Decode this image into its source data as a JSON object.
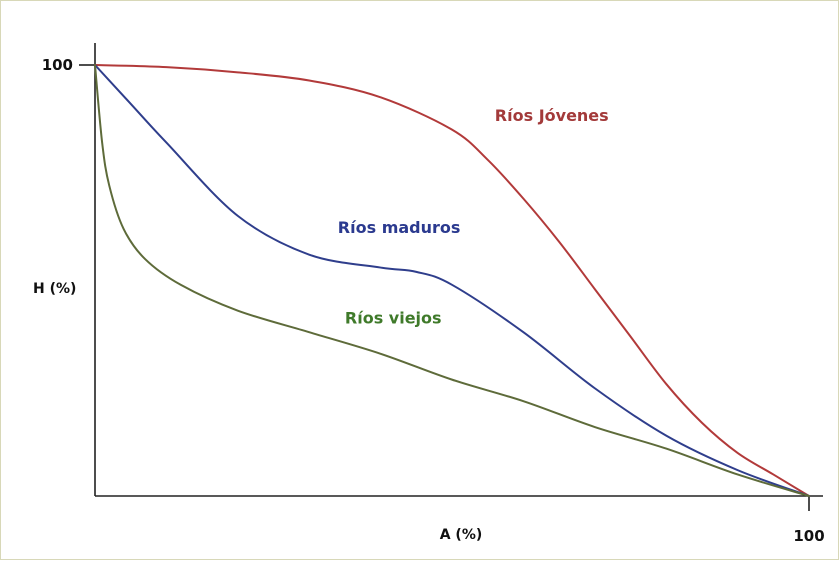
{
  "chart_data": {
    "type": "line",
    "title": "",
    "xlabel": "A (%)",
    "ylabel": "H (%)",
    "xlim": [
      0,
      100
    ],
    "ylim": [
      0,
      100
    ],
    "x_tick_labels": [
      "100"
    ],
    "y_tick_labels": [
      "100"
    ],
    "grid": false,
    "series": [
      {
        "name": "Ríos Jóvenes",
        "color": "#b23a3a",
        "x": [
          0,
          10,
          20,
          30,
          40,
          50,
          55,
          60,
          65,
          70,
          75,
          80,
          85,
          90,
          95,
          100
        ],
        "y": [
          100,
          99.5,
          98.3,
          96.4,
          92.5,
          85,
          78,
          69,
          59,
          48,
          37,
          26,
          17,
          10,
          5,
          0
        ]
      },
      {
        "name": "Ríos maduros",
        "color": "#2f3e8c",
        "x": [
          0,
          5,
          10,
          20,
          30,
          40,
          45,
          50,
          60,
          70,
          80,
          90,
          100
        ],
        "y": [
          100,
          91,
          82,
          65,
          56,
          53,
          52,
          49,
          38,
          25,
          14,
          6,
          0
        ]
      },
      {
        "name": "Ríos viejos",
        "color": "#5e6b3a",
        "x": [
          0,
          1,
          2,
          4,
          7,
          12,
          20,
          30,
          40,
          50,
          60,
          70,
          80,
          90,
          100
        ],
        "y": [
          100,
          82,
          72,
          62,
          55,
          49,
          43,
          38,
          33,
          27,
          22,
          16,
          11,
          5,
          0
        ]
      }
    ],
    "annotations": [
      {
        "text": "Ríos Jóvenes",
        "color": "#a33a3a",
        "x": 56,
        "y": 87
      },
      {
        "text": "Ríos maduros",
        "color": "#2b3a8f",
        "x": 34,
        "y": 61
      },
      {
        "text": "Ríos viejos",
        "color": "#3f7a2a",
        "x": 35,
        "y": 40
      }
    ]
  }
}
